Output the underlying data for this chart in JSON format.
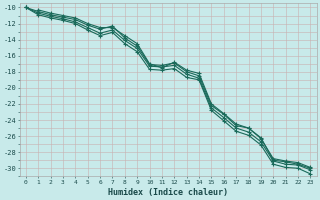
{
  "xlabel": "Humidex (Indice chaleur)",
  "bg_color": "#c8eaea",
  "grid_color": "#c8b8b8",
  "line_color": "#1a6a5a",
  "xlim": [
    -0.5,
    23.5
  ],
  "ylim": [
    -31,
    -9.5
  ],
  "yticks": [
    -10,
    -12,
    -14,
    -16,
    -18,
    -20,
    -22,
    -24,
    -26,
    -28,
    -30
  ],
  "xticks": [
    0,
    1,
    2,
    3,
    4,
    5,
    6,
    7,
    8,
    9,
    10,
    11,
    12,
    13,
    14,
    15,
    16,
    17,
    18,
    19,
    20,
    21,
    22,
    23
  ],
  "series": [
    [
      -10.0,
      -10.5,
      -10.9,
      -11.2,
      -11.5,
      -12.2,
      -12.7,
      -12.3,
      -13.8,
      -14.8,
      -17.1,
      -17.2,
      -16.9,
      -18.0,
      -18.5,
      -22.2,
      -23.3,
      -24.7,
      -25.0,
      -26.3,
      -28.8,
      -29.1,
      -29.3,
      -29.9
    ],
    [
      -10.0,
      -10.7,
      -11.1,
      -11.4,
      -11.8,
      -12.5,
      -13.2,
      -12.8,
      -14.1,
      -15.1,
      -17.3,
      -17.4,
      -17.2,
      -18.3,
      -18.8,
      -22.5,
      -23.7,
      -25.0,
      -25.5,
      -26.7,
      -29.1,
      -29.5,
      -29.6,
      -30.2
    ],
    [
      -10.0,
      -10.9,
      -11.3,
      -11.6,
      -12.0,
      -12.8,
      -13.5,
      -13.1,
      -14.5,
      -15.5,
      -17.7,
      -17.8,
      -17.6,
      -18.7,
      -19.0,
      -22.8,
      -24.1,
      -25.4,
      -25.9,
      -27.1,
      -29.5,
      -29.9,
      -30.0,
      -30.7
    ],
    [
      null,
      -10.3,
      -10.7,
      -11.0,
      -11.3,
      -12.0,
      -12.5,
      -12.5,
      -13.5,
      -14.5,
      -17.0,
      -17.5,
      -16.8,
      -17.8,
      -18.2,
      -22.0,
      -23.2,
      -24.5,
      -25.0,
      -26.2,
      -29.0,
      -29.2,
      -29.5,
      -30.0
    ]
  ]
}
